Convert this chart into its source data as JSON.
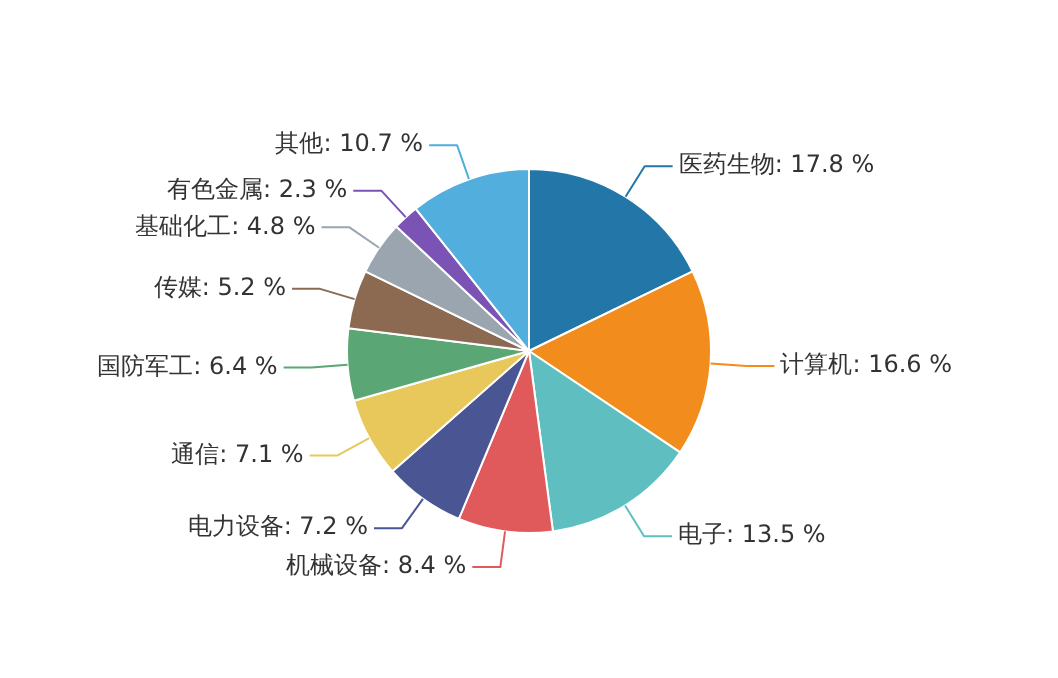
{
  "chart_data": {
    "type": "pie",
    "categories": [
      "医药生物",
      "计算机",
      "电子",
      "机械设备",
      "电力设备",
      "通信",
      "国防军工",
      "传媒",
      "基础化工",
      "有色金属",
      "其他"
    ],
    "values": [
      17.8,
      16.6,
      13.5,
      8.4,
      7.2,
      7.1,
      6.4,
      5.2,
      4.8,
      2.3,
      10.7
    ],
    "value_labels": [
      "17.8 %",
      "16.6 %",
      "13.5 %",
      "8.4 %",
      "7.2 %",
      "7.1 %",
      "6.4 %",
      "5.2 %",
      "4.8 %",
      "2.3 %",
      "10.7 %"
    ],
    "colors": [
      "#2377a8",
      "#f28c1c",
      "#5fbfc0",
      "#e05a5c",
      "#4a5694",
      "#e8c85a",
      "#5aa674",
      "#8c6a52",
      "#9aa5af",
      "#7b53b5",
      "#52aedd"
    ],
    "legend": false
  }
}
